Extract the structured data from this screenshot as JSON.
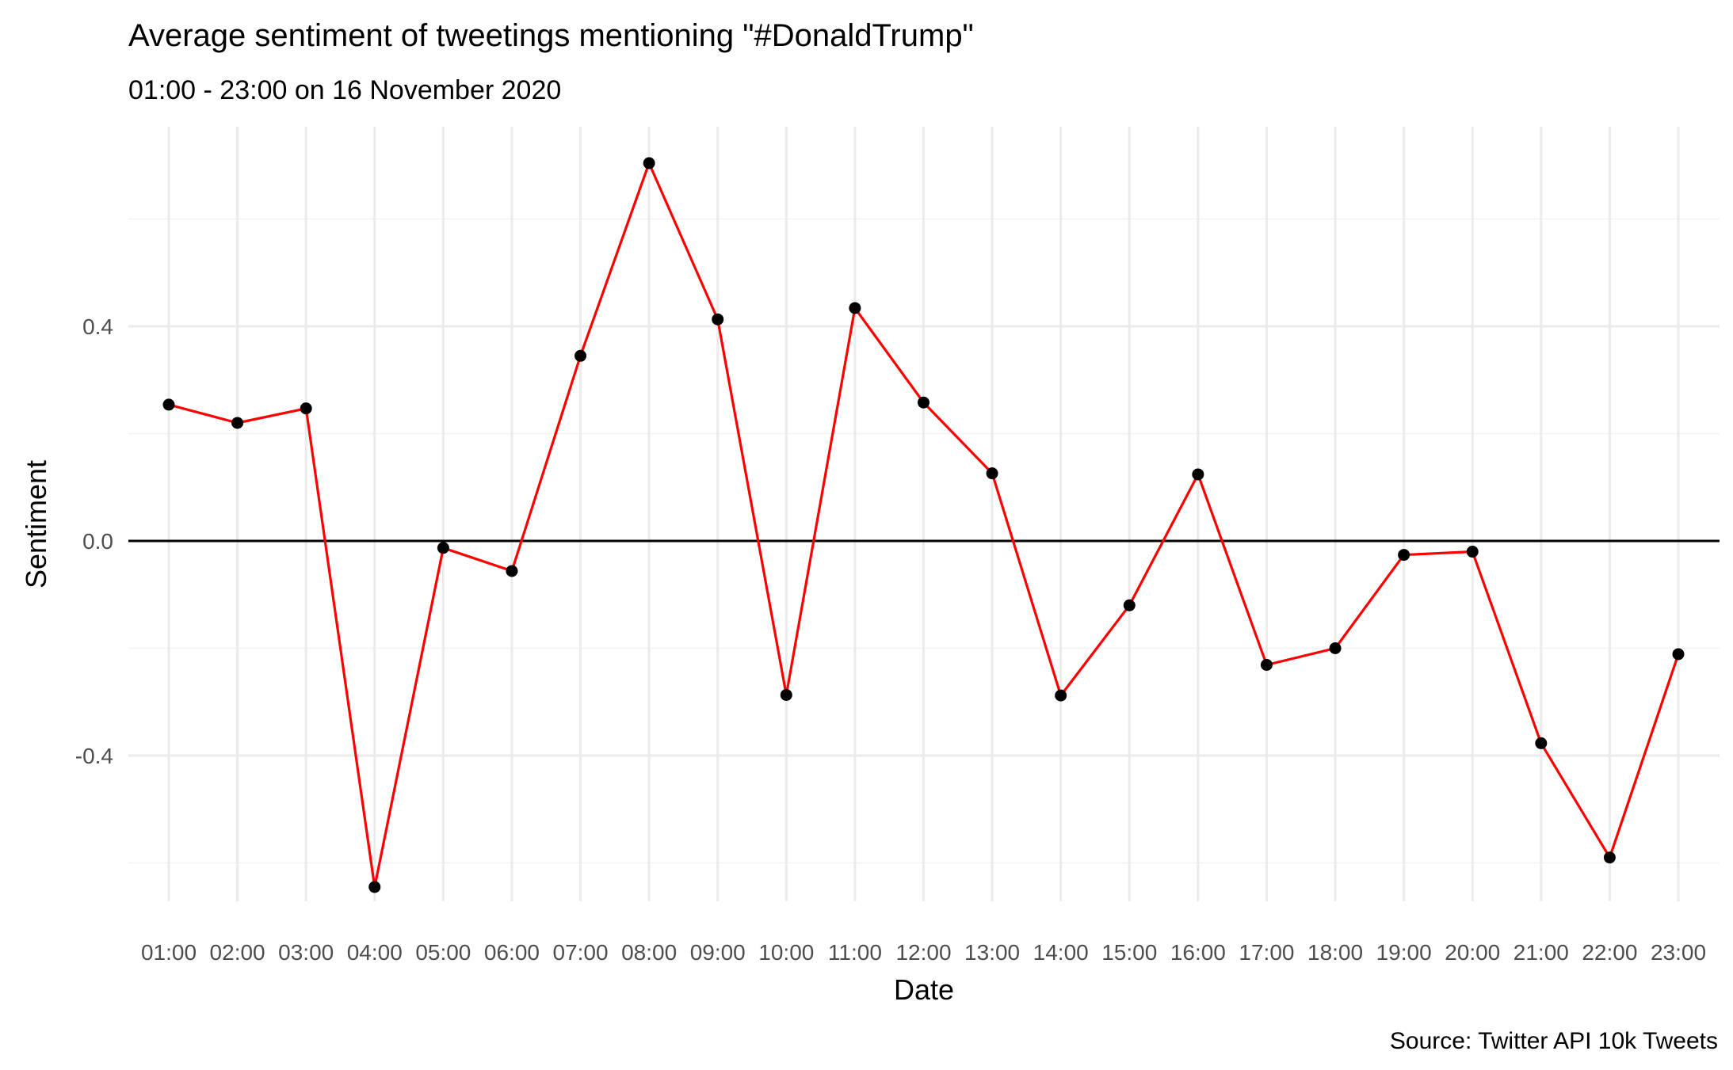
{
  "chart_data": {
    "type": "line",
    "title": "Average sentiment of tweetings mentioning \"#DonaldTrump\"",
    "subtitle": "01:00 - 23:00 on 16 November 2020",
    "caption": "Source: Twitter API 10k Tweets",
    "xlabel": "Date",
    "ylabel": "Sentiment",
    "categories": [
      "01:00",
      "02:00",
      "03:00",
      "04:00",
      "05:00",
      "06:00",
      "07:00",
      "08:00",
      "09:00",
      "10:00",
      "11:00",
      "12:00",
      "13:00",
      "14:00",
      "15:00",
      "16:00",
      "17:00",
      "18:00",
      "19:00",
      "20:00",
      "21:00",
      "22:00",
      "23:00"
    ],
    "values": [
      0.254,
      0.22,
      0.247,
      -0.645,
      -0.013,
      -0.056,
      0.345,
      0.704,
      0.413,
      -0.287,
      0.434,
      0.258,
      0.126,
      -0.288,
      -0.12,
      0.124,
      -0.231,
      -0.2,
      -0.026,
      -0.02,
      -0.377,
      -0.59,
      -0.211
    ],
    "ylim": [
      -0.7,
      0.76
    ],
    "y_ticks": [
      -0.4,
      0.0,
      0.4
    ],
    "y_tick_labels": [
      "-0.4",
      "0.0",
      "0.4"
    ],
    "y_minor_ticks": [
      -0.6,
      -0.2,
      0.2,
      0.6
    ],
    "grid": true,
    "zero_line": true,
    "line_color": "#ff0000",
    "point_color": "#000000",
    "grid_color": "#ebebeb",
    "text_color": "#000000",
    "tick_text_color": "#4d4d4d"
  }
}
